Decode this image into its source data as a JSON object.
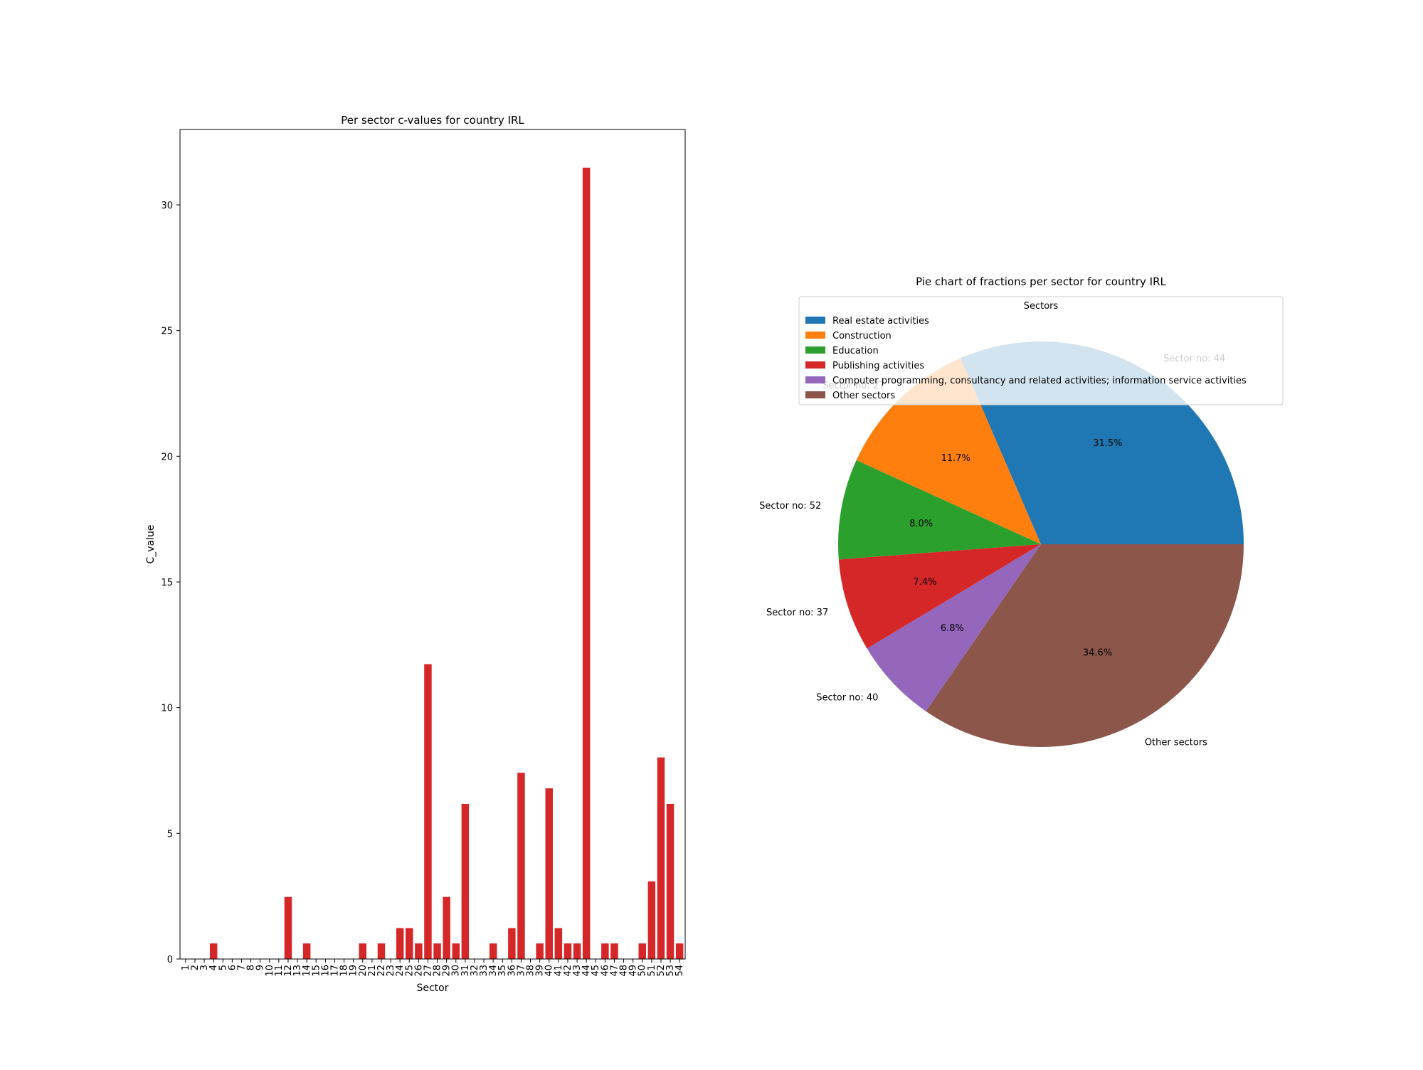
{
  "chart_data": [
    {
      "type": "bar",
      "title": "Per sector c-values for country IRL",
      "xlabel": "Sector",
      "ylabel": "C_value",
      "ylim": [
        0,
        33
      ],
      "yticks": [
        0,
        5,
        10,
        15,
        20,
        25,
        30
      ],
      "grid": false,
      "bar_color": "#d62728",
      "categories": [
        "1",
        "2",
        "3",
        "4",
        "5",
        "6",
        "7",
        "8",
        "9",
        "10",
        "11",
        "12",
        "13",
        "14",
        "15",
        "16",
        "17",
        "18",
        "19",
        "20",
        "21",
        "22",
        "23",
        "24",
        "25",
        "26",
        "27",
        "28",
        "29",
        "30",
        "31",
        "32",
        "33",
        "34",
        "35",
        "36",
        "37",
        "38",
        "39",
        "40",
        "41",
        "42",
        "43",
        "44",
        "45",
        "46",
        "47",
        "48",
        "49",
        "50",
        "51",
        "52",
        "53",
        "54"
      ],
      "values": [
        0,
        0,
        0,
        0.62,
        0,
        0,
        0,
        0,
        0,
        0,
        0,
        2.47,
        0,
        0.62,
        0,
        0,
        0,
        0,
        0,
        0.62,
        0,
        0.62,
        0,
        1.23,
        1.23,
        0.62,
        11.73,
        0.62,
        2.47,
        0.62,
        6.17,
        0,
        0,
        0.62,
        0,
        1.23,
        7.41,
        0,
        0.62,
        6.79,
        1.23,
        0.62,
        0.62,
        31.48,
        0,
        0.62,
        0.62,
        0,
        0,
        0.62,
        3.09,
        8.02,
        6.17,
        0.62
      ]
    },
    {
      "type": "pie",
      "title": "Pie chart of fractions per sector for country IRL",
      "legend_title": "Sectors",
      "legend_position": "upper",
      "slices": [
        {
          "label": "Sector no: 44",
          "legend": "Real estate activities",
          "value": 31.5,
          "pct_label": "31.5%",
          "color": "#1f77b4"
        },
        {
          "label": "Sector no: 27",
          "legend": "Construction",
          "value": 11.7,
          "pct_label": "11.7%",
          "color": "#ff7f0e"
        },
        {
          "label": "Sector no: 52",
          "legend": "Education",
          "value": 8.0,
          "pct_label": "8.0%",
          "color": "#2ca02c"
        },
        {
          "label": "Sector no: 37",
          "legend": "Publishing activities",
          "value": 7.4,
          "pct_label": "7.4%",
          "color": "#d62728"
        },
        {
          "label": "Sector no: 40",
          "legend": "Computer programming, consultancy and related activities; information service activities",
          "value": 6.8,
          "pct_label": "6.8%",
          "color": "#9467bd"
        },
        {
          "label": "Other sectors",
          "legend": "Other sectors",
          "value": 34.6,
          "pct_label": "34.6%",
          "color": "#8c564b"
        }
      ]
    }
  ]
}
